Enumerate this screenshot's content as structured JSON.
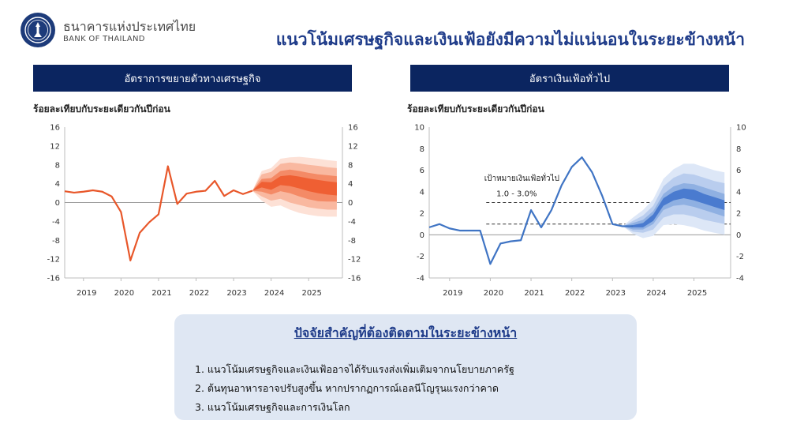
{
  "header": {
    "bank_name_th": "ธนาคารแห่งประเทศไทย",
    "bank_name_en": "BANK OF THAILAND",
    "headline": "แนวโน้มเศรษฐกิจและเงินเฟ้อยังมีความไม่แน่นอนในระยะข้างหน้า",
    "logo_icon": "bank-seal-icon"
  },
  "panels": {
    "left_title": "อัตราการขยายตัวทางเศรษฐกิจ",
    "right_title": "อัตราเงินเฟ้อทั่วไป"
  },
  "factors": {
    "title": "ปัจจัยสำคัญที่ต้องติดตามในระยะข้างหน้า",
    "items": [
      "1. แนวโน้มเศรษฐกิจและเงินเฟ้ออาจได้รับแรงส่งเพิ่มเติมจากนโยบายภาครัฐ",
      "2. ต้นทุนอาหารอาจปรับสูงขึ้น  หากปรากฏการณ์เอลนีโญรุนแรงกว่าคาด",
      "3. แนวโน้มเศรษฐกิจและการเงินโลก"
    ]
  },
  "chart_data": [
    {
      "type": "line",
      "title": "อัตราการขยายตัวทางเศรษฐกิจ",
      "ylabel": "ร้อยละเทียบกับระยะเดียวกันปีก่อน",
      "ylim": [
        -16,
        16
      ],
      "yticks": [
        -16,
        -12,
        -8,
        -4,
        0,
        4,
        8,
        12,
        16
      ],
      "xlim": [
        2018.5,
        2025.9
      ],
      "xticks": [
        2019,
        2020,
        2021,
        2022,
        2023,
        2024,
        2025
      ],
      "color": "#e8572a",
      "fan_colors": [
        "#fde1d6",
        "#f9b8a0",
        "#f48a66",
        "#ef5f33"
      ],
      "series": [
        {
          "values": [
            [
              2018.5,
              2.4
            ],
            [
              2018.75,
              2.1
            ],
            [
              2019.0,
              2.3
            ],
            [
              2019.25,
              2.6
            ],
            [
              2019.5,
              2.3
            ],
            [
              2019.75,
              1.3
            ],
            [
              2020.0,
              -2.0
            ],
            [
              2020.25,
              -12.3
            ],
            [
              2020.5,
              -6.4
            ],
            [
              2020.75,
              -4.2
            ],
            [
              2021.0,
              -2.5
            ],
            [
              2021.25,
              7.7
            ],
            [
              2021.5,
              -0.3
            ],
            [
              2021.75,
              1.9
            ],
            [
              2022.0,
              2.3
            ],
            [
              2022.25,
              2.5
            ],
            [
              2022.5,
              4.6
            ],
            [
              2022.75,
              1.4
            ],
            [
              2023.0,
              2.6
            ],
            [
              2023.25,
              1.8
            ],
            [
              2023.5,
              2.5
            ]
          ]
        }
      ],
      "forecast": {
        "x": [
          2023.5,
          2023.75,
          2024.0,
          2024.25,
          2024.5,
          2024.75,
          2025.0,
          2025.25,
          2025.5,
          2025.75
        ],
        "median": [
          2.5,
          3.8,
          3.5,
          4.8,
          4.7,
          4.3,
          3.8,
          3.5,
          3.2,
          3.0
        ],
        "bands": [
          {
            "lower": [
              2.5,
              0.4,
              -0.9,
              -0.6,
              -1.5,
              -2.2,
              -2.6,
              -2.9,
              -3.0,
              -3.0
            ],
            "upper": [
              2.5,
              6.7,
              7.3,
              9.3,
              9.6,
              9.7,
              9.5,
              9.3,
              9.0,
              8.8
            ]
          },
          {
            "lower": [
              2.5,
              1.3,
              0.4,
              0.8,
              0.0,
              -0.5,
              -1.0,
              -1.3,
              -1.5,
              -1.5
            ],
            "upper": [
              2.5,
              6.0,
              6.5,
              8.2,
              8.5,
              8.3,
              8.0,
              7.8,
              7.5,
              7.3
            ]
          },
          {
            "lower": [
              2.5,
              2.3,
              1.7,
              2.4,
              2.0,
              1.3,
              0.7,
              0.3,
              0.2,
              0.2
            ],
            "upper": [
              2.5,
              5.0,
              5.2,
              6.7,
              7.0,
              6.7,
              6.3,
              6.0,
              5.8,
              5.6
            ]
          },
          {
            "lower": [
              2.5,
              3.2,
              2.7,
              3.7,
              3.5,
              3.0,
              2.4,
              2.0,
              1.7,
              1.5
            ],
            "upper": [
              2.5,
              4.4,
              4.3,
              5.6,
              5.8,
              5.5,
              5.1,
              4.8,
              4.5,
              4.3
            ]
          }
        ]
      }
    },
    {
      "type": "line",
      "title": "อัตราเงินเฟ้อทั่วไป",
      "ylabel": "ร้อยละเทียบกับระยะเดียวกันปีก่อน",
      "ylim": [
        -4,
        10
      ],
      "yticks": [
        -4,
        -2,
        0,
        2,
        4,
        6,
        8,
        10
      ],
      "xlim": [
        2018.5,
        2025.9
      ],
      "xticks": [
        2019,
        2020,
        2021,
        2022,
        2023,
        2024,
        2025
      ],
      "color": "#3f74c4",
      "fan_colors": [
        "#dde7f7",
        "#b9cdee",
        "#8fb0e2",
        "#4a7bcf"
      ],
      "series": [
        {
          "values": [
            [
              2018.5,
              0.7
            ],
            [
              2018.75,
              1.0
            ],
            [
              2019.0,
              0.6
            ],
            [
              2019.25,
              0.4
            ],
            [
              2019.5,
              0.4
            ],
            [
              2019.75,
              0.4
            ],
            [
              2020.0,
              -2.7
            ],
            [
              2020.25,
              -0.8
            ],
            [
              2020.5,
              -0.6
            ],
            [
              2020.75,
              -0.5
            ],
            [
              2021.0,
              2.3
            ],
            [
              2021.25,
              0.7
            ],
            [
              2021.5,
              2.3
            ],
            [
              2021.75,
              4.6
            ],
            [
              2022.0,
              6.3
            ],
            [
              2022.25,
              7.2
            ],
            [
              2022.5,
              5.8
            ],
            [
              2022.75,
              3.6
            ],
            [
              2023.0,
              1.0
            ],
            [
              2023.25,
              0.8
            ],
            [
              2023.5,
              0.8
            ]
          ]
        }
      ],
      "forecast": {
        "x": [
          2023.25,
          2023.5,
          2023.75,
          2024.0,
          2024.25,
          2024.5,
          2024.75,
          2025.0,
          2025.25,
          2025.5,
          2025.75
        ],
        "median": [
          0.8,
          0.8,
          0.9,
          1.6,
          3.0,
          3.6,
          3.8,
          3.7,
          3.3,
          3.0,
          2.7
        ],
        "bands": [
          {
            "lower": [
              0.8,
              0.1,
              -0.3,
              -0.1,
              0.9,
              1.0,
              0.9,
              0.7,
              0.4,
              0.2,
              0.0
            ],
            "upper": [
              0.8,
              1.6,
              2.3,
              3.3,
              5.2,
              6.1,
              6.6,
              6.6,
              6.3,
              6.0,
              5.8
            ]
          },
          {
            "lower": [
              0.8,
              0.3,
              0.2,
              0.5,
              1.6,
              1.9,
              1.9,
              1.7,
              1.4,
              1.2,
              1.0
            ],
            "upper": [
              0.8,
              1.3,
              1.8,
              2.7,
              4.5,
              5.3,
              5.7,
              5.6,
              5.3,
              5.0,
              4.8
            ]
          },
          {
            "lower": [
              0.8,
              0.5,
              0.5,
              1.0,
              2.3,
              2.7,
              2.8,
              2.6,
              2.3,
              2.0,
              1.7
            ],
            "upper": [
              0.8,
              1.1,
              1.4,
              2.2,
              3.8,
              4.5,
              4.8,
              4.7,
              4.4,
              4.1,
              3.8
            ]
          },
          {
            "lower": [
              0.8,
              0.7,
              0.7,
              1.3,
              2.7,
              3.2,
              3.4,
              3.2,
              2.9,
              2.6,
              2.3
            ],
            "upper": [
              0.8,
              0.9,
              1.1,
              1.9,
              3.4,
              4.0,
              4.3,
              4.2,
              3.8,
              3.5,
              3.2
            ]
          }
        ]
      },
      "target": {
        "label": "เป้าหมายเงินเฟ้อทั่วไป",
        "range_label": "1.0 - 3.0%",
        "lower": 1.0,
        "upper": 3.0
      }
    }
  ]
}
